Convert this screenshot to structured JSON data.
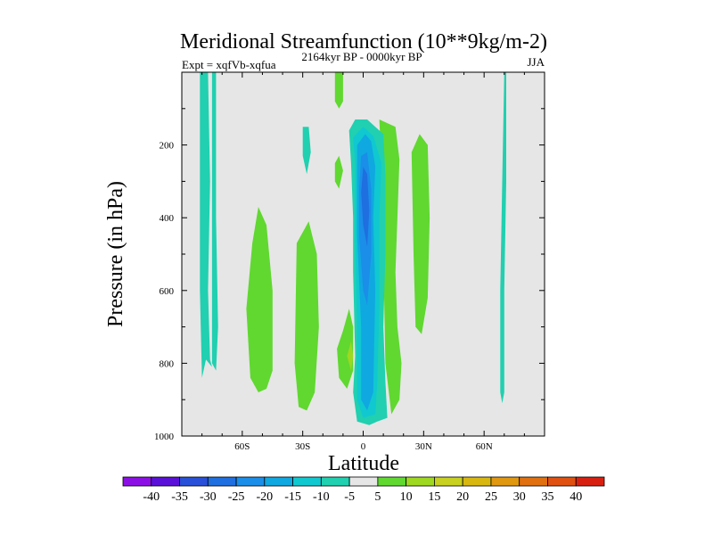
{
  "chart_data": {
    "type": "heatmap",
    "title": "Meridional Streamfunction (10**9kg/m-2)",
    "left_label": "Expt = xqfVb-xqfua",
    "center_label": "2164kyr BP - 0000kyr BP",
    "right_label": "JJA",
    "xlabel": "Latitude",
    "ylabel": "Pressure (in hPa)",
    "x_range": [
      -90,
      90
    ],
    "y_range": [
      0,
      1000
    ],
    "y_inverted": true,
    "xticks": [
      {
        "value": -60,
        "label": "60S"
      },
      {
        "value": -30,
        "label": "30S"
      },
      {
        "value": 0,
        "label": "0"
      },
      {
        "value": 30,
        "label": "30N"
      },
      {
        "value": 60,
        "label": "60N"
      }
    ],
    "yticks": [
      {
        "value": 200,
        "label": "200"
      },
      {
        "value": 400,
        "label": "400"
      },
      {
        "value": 600,
        "label": "600"
      },
      {
        "value": 800,
        "label": "800"
      },
      {
        "value": 1000,
        "label": "1000"
      }
    ],
    "background_color": "#e6e6e6",
    "contour_levels": [
      -40,
      -35,
      -30,
      -25,
      -20,
      -15,
      -10,
      -5,
      5,
      10,
      15,
      20,
      25,
      30,
      35,
      40
    ],
    "colorbar": [
      {
        "color": "#8c10e6"
      },
      {
        "color": "#5a10d8"
      },
      {
        "color": "#2850d8"
      },
      {
        "color": "#1f6fe0"
      },
      {
        "color": "#1a8ee8"
      },
      {
        "color": "#10a8e0"
      },
      {
        "color": "#10c8d0"
      },
      {
        "color": "#20d0b0"
      },
      {
        "color": "#e6e6e6"
      },
      {
        "color": "#60d830"
      },
      {
        "color": "#9ed820"
      },
      {
        "color": "#c8d020"
      },
      {
        "color": "#d8b810"
      },
      {
        "color": "#e09810"
      },
      {
        "color": "#e07010"
      },
      {
        "color": "#e05010"
      },
      {
        "color": "#d82010"
      }
    ],
    "regions": [
      {
        "value": -7,
        "color": "#20d0b0",
        "points": [
          [
            -81,
            0
          ],
          [
            -77,
            0
          ],
          [
            -76,
            300
          ],
          [
            -77,
            600
          ],
          [
            -76,
            790
          ],
          [
            -75,
            810
          ],
          [
            -78,
            790
          ],
          [
            -80,
            840
          ],
          [
            -81,
            600
          ]
        ]
      },
      {
        "value": -7,
        "color": "#20d0b0",
        "points": [
          [
            -75,
            0
          ],
          [
            -73,
            0
          ],
          [
            -73,
            400
          ],
          [
            -72,
            700
          ],
          [
            -73,
            820
          ],
          [
            -75,
            800
          ],
          [
            -75,
            400
          ]
        ]
      },
      {
        "value": 7,
        "color": "#60d830",
        "points": [
          [
            -58,
            650
          ],
          [
            -55,
            470
          ],
          [
            -52,
            370
          ],
          [
            -48,
            420
          ],
          [
            -45,
            600
          ],
          [
            -45,
            820
          ],
          [
            -48,
            870
          ],
          [
            -52,
            880
          ],
          [
            -56,
            840
          ]
        ]
      },
      {
        "value": 7,
        "color": "#60d830",
        "points": [
          [
            -33,
            470
          ],
          [
            -27,
            410
          ],
          [
            -23,
            500
          ],
          [
            -22,
            700
          ],
          [
            -24,
            880
          ],
          [
            -28,
            930
          ],
          [
            -32,
            920
          ],
          [
            -34,
            800
          ]
        ]
      },
      {
        "value": -7,
        "color": "#20d0b0",
        "points": [
          [
            -30,
            150
          ],
          [
            -27,
            150
          ],
          [
            -26,
            220
          ],
          [
            -28,
            280
          ],
          [
            -30,
            230
          ]
        ]
      },
      {
        "value": 7,
        "color": "#60d830",
        "points": [
          [
            -14,
            0
          ],
          [
            -10,
            0
          ],
          [
            -10,
            80
          ],
          [
            -12,
            100
          ],
          [
            -14,
            80
          ]
        ]
      },
      {
        "value": 7,
        "color": "#60d830",
        "points": [
          [
            -14,
            250
          ],
          [
            -12,
            230
          ],
          [
            -10,
            270
          ],
          [
            -12,
            320
          ],
          [
            -14,
            300
          ]
        ]
      },
      {
        "value": 7,
        "color": "#60d830",
        "points": [
          [
            -13,
            760
          ],
          [
            -10,
            710
          ],
          [
            -7,
            650
          ],
          [
            -5,
            700
          ],
          [
            -5,
            820
          ],
          [
            -8,
            870
          ],
          [
            -12,
            840
          ]
        ]
      },
      {
        "value": 12,
        "color": "#9ed820",
        "points": [
          [
            -8,
            780
          ],
          [
            -6,
            740
          ],
          [
            -5,
            780
          ],
          [
            -6,
            820
          ]
        ]
      },
      {
        "value": 7,
        "color": "#60d830",
        "points": [
          [
            8,
            130
          ],
          [
            12,
            140
          ],
          [
            16,
            150
          ],
          [
            18,
            240
          ],
          [
            17,
            400
          ],
          [
            16,
            550
          ],
          [
            17,
            700
          ],
          [
            19,
            800
          ],
          [
            18,
            900
          ],
          [
            14,
            940
          ],
          [
            11,
            800
          ],
          [
            10,
            500
          ],
          [
            9,
            250
          ]
        ]
      },
      {
        "value": 7,
        "color": "#60d830",
        "points": [
          [
            24,
            220
          ],
          [
            28,
            170
          ],
          [
            32,
            200
          ],
          [
            33,
            400
          ],
          [
            32,
            620
          ],
          [
            29,
            720
          ],
          [
            26,
            700
          ],
          [
            25,
            500
          ]
        ]
      },
      {
        "value": -7,
        "color": "#20d0b0",
        "points": [
          [
            -7,
            160
          ],
          [
            -4,
            130
          ],
          [
            2,
            130
          ],
          [
            6,
            150
          ],
          [
            10,
            170
          ],
          [
            11,
            280
          ],
          [
            11,
            500
          ],
          [
            10,
            700
          ],
          [
            11,
            850
          ],
          [
            12,
            950
          ],
          [
            7,
            960
          ],
          [
            3,
            970
          ],
          [
            -3,
            960
          ],
          [
            -5,
            880
          ],
          [
            -4,
            780
          ],
          [
            -5,
            550
          ],
          [
            -5,
            400
          ],
          [
            -6,
            250
          ]
        ]
      },
      {
        "value": -12,
        "color": "#10c8d0",
        "points": [
          [
            -5,
            180
          ],
          [
            0,
            150
          ],
          [
            5,
            175
          ],
          [
            9,
            250
          ],
          [
            8,
            400
          ],
          [
            8,
            650
          ],
          [
            7,
            850
          ],
          [
            6,
            940
          ],
          [
            0,
            950
          ],
          [
            -3,
            900
          ],
          [
            -3,
            700
          ],
          [
            -4,
            450
          ],
          [
            -4,
            250
          ]
        ]
      },
      {
        "value": -17,
        "color": "#10a8e0",
        "points": [
          [
            -3,
            200
          ],
          [
            1,
            170
          ],
          [
            4,
            190
          ],
          [
            6,
            260
          ],
          [
            5,
            400
          ],
          [
            6,
            600
          ],
          [
            5,
            880
          ],
          [
            2,
            930
          ],
          [
            -1,
            900
          ],
          [
            -1,
            700
          ],
          [
            -3,
            450
          ]
        ]
      },
      {
        "value": -22,
        "color": "#1a8ee8",
        "points": [
          [
            -1,
            230
          ],
          [
            2,
            220
          ],
          [
            4,
            320
          ],
          [
            4,
            500
          ],
          [
            2,
            640
          ],
          [
            0,
            600
          ],
          [
            -2,
            450
          ],
          [
            -2,
            320
          ]
        ]
      },
      {
        "value": -27,
        "color": "#1f6fe0",
        "points": [
          [
            0,
            260
          ],
          [
            2,
            280
          ],
          [
            3,
            380
          ],
          [
            2,
            480
          ],
          [
            0,
            420
          ],
          [
            -1,
            330
          ]
        ]
      },
      {
        "value": -7,
        "color": "#20d0b0",
        "points": [
          [
            70,
            0
          ],
          [
            71,
            0
          ],
          [
            71,
            300
          ],
          [
            70,
            600
          ],
          [
            70,
            880
          ],
          [
            69,
            910
          ],
          [
            68,
            880
          ],
          [
            68,
            600
          ],
          [
            69,
            300
          ]
        ]
      }
    ]
  }
}
